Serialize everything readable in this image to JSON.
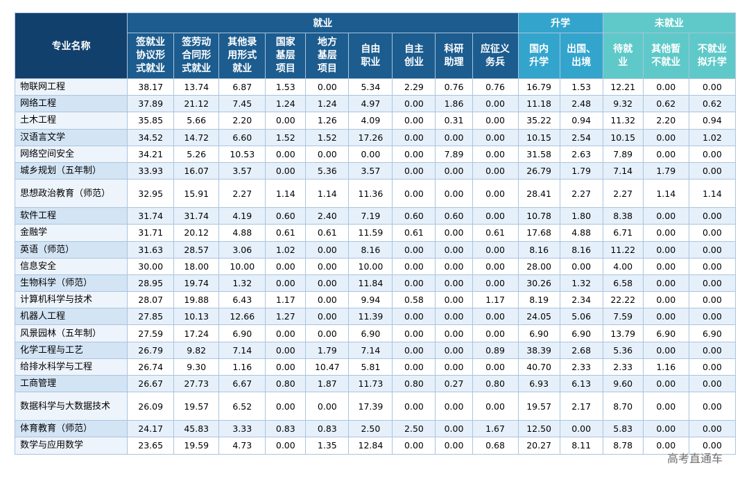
{
  "table": {
    "name_header": "专业名称",
    "groups": [
      {
        "label": "就业",
        "span": 9,
        "cls": "h-emp"
      },
      {
        "label": "升学",
        "span": 2,
        "cls": "h-up"
      },
      {
        "label": "未就业",
        "span": 3,
        "cls": "h-un"
      }
    ],
    "columns": [
      {
        "label": "签就业\n协议形\n式就业",
        "cls": "h-emp"
      },
      {
        "label": "签劳动\n合同形\n式就业",
        "cls": "h-emp"
      },
      {
        "label": "其他录\n用形式\n就业",
        "cls": "h-emp"
      },
      {
        "label": "国家\n基层\n项目",
        "cls": "h-emp"
      },
      {
        "label": "地方\n基层\n项目",
        "cls": "h-emp"
      },
      {
        "label": "自由\n职业",
        "cls": "h-emp"
      },
      {
        "label": "自主\n创业",
        "cls": "h-emp"
      },
      {
        "label": "科研\n助理",
        "cls": "h-emp"
      },
      {
        "label": "应征义\n务兵",
        "cls": "h-emp"
      },
      {
        "label": "国内\n升学",
        "cls": "h-up"
      },
      {
        "label": "出国、\n出境",
        "cls": "h-up"
      },
      {
        "label": "待就\n业",
        "cls": "h-un"
      },
      {
        "label": "其他暂\n不就业",
        "cls": "h-un"
      },
      {
        "label": "不就业\n拟升学",
        "cls": "h-un"
      }
    ],
    "rows": [
      {
        "name": "物联网工程",
        "values": [
          "38.17",
          "13.74",
          "6.87",
          "1.53",
          "0.00",
          "5.34",
          "2.29",
          "0.76",
          "0.76",
          "16.79",
          "1.53",
          "12.21",
          "0.00",
          "0.00"
        ]
      },
      {
        "name": "网络工程",
        "values": [
          "37.89",
          "21.12",
          "7.45",
          "1.24",
          "1.24",
          "4.97",
          "0.00",
          "1.86",
          "0.00",
          "11.18",
          "2.48",
          "9.32",
          "0.62",
          "0.62"
        ]
      },
      {
        "name": "土木工程",
        "values": [
          "35.85",
          "5.66",
          "2.20",
          "0.00",
          "1.26",
          "4.09",
          "0.00",
          "0.31",
          "0.00",
          "35.22",
          "0.94",
          "11.32",
          "2.20",
          "0.94"
        ]
      },
      {
        "name": "汉语言文学",
        "values": [
          "34.52",
          "14.72",
          "6.60",
          "1.52",
          "1.52",
          "17.26",
          "0.00",
          "0.00",
          "0.00",
          "10.15",
          "2.54",
          "10.15",
          "0.00",
          "1.02"
        ]
      },
      {
        "name": "网络空间安全",
        "values": [
          "34.21",
          "5.26",
          "10.53",
          "0.00",
          "0.00",
          "0.00",
          "0.00",
          "7.89",
          "0.00",
          "31.58",
          "2.63",
          "7.89",
          "0.00",
          "0.00"
        ]
      },
      {
        "name": "城乡规划（五年制）",
        "values": [
          "33.93",
          "16.07",
          "3.57",
          "0.00",
          "5.36",
          "3.57",
          "0.00",
          "0.00",
          "0.00",
          "26.79",
          "1.79",
          "7.14",
          "1.79",
          "0.00"
        ]
      },
      {
        "name": "思想政治教育（师范）",
        "values": [
          "32.95",
          "15.91",
          "2.27",
          "1.14",
          "1.14",
          "11.36",
          "0.00",
          "0.00",
          "0.00",
          "28.41",
          "2.27",
          "2.27",
          "1.14",
          "1.14"
        ]
      },
      {
        "name": "软件工程",
        "values": [
          "31.74",
          "31.74",
          "4.19",
          "0.60",
          "2.40",
          "7.19",
          "0.60",
          "0.60",
          "0.00",
          "10.78",
          "1.80",
          "8.38",
          "0.00",
          "0.00"
        ]
      },
      {
        "name": "金融学",
        "values": [
          "31.71",
          "20.12",
          "4.88",
          "0.61",
          "0.61",
          "11.59",
          "0.61",
          "0.00",
          "0.61",
          "17.68",
          "4.88",
          "6.71",
          "0.00",
          "0.00"
        ]
      },
      {
        "name": "英语（师范）",
        "values": [
          "31.63",
          "28.57",
          "3.06",
          "1.02",
          "0.00",
          "8.16",
          "0.00",
          "0.00",
          "0.00",
          "8.16",
          "8.16",
          "11.22",
          "0.00",
          "0.00"
        ]
      },
      {
        "name": "信息安全",
        "values": [
          "30.00",
          "18.00",
          "10.00",
          "0.00",
          "0.00",
          "10.00",
          "0.00",
          "0.00",
          "0.00",
          "28.00",
          "0.00",
          "4.00",
          "0.00",
          "0.00"
        ]
      },
      {
        "name": "生物科学（师范）",
        "values": [
          "28.95",
          "19.74",
          "1.32",
          "0.00",
          "0.00",
          "11.84",
          "0.00",
          "0.00",
          "0.00",
          "30.26",
          "1.32",
          "6.58",
          "0.00",
          "0.00"
        ]
      },
      {
        "name": "计算机科学与技术",
        "values": [
          "28.07",
          "19.88",
          "6.43",
          "1.17",
          "0.00",
          "9.94",
          "0.58",
          "0.00",
          "1.17",
          "8.19",
          "2.34",
          "22.22",
          "0.00",
          "0.00"
        ]
      },
      {
        "name": "机器人工程",
        "values": [
          "27.85",
          "10.13",
          "12.66",
          "1.27",
          "0.00",
          "11.39",
          "0.00",
          "0.00",
          "0.00",
          "24.05",
          "5.06",
          "7.59",
          "0.00",
          "0.00"
        ]
      },
      {
        "name": "风景园林（五年制）",
        "values": [
          "27.59",
          "17.24",
          "6.90",
          "0.00",
          "0.00",
          "6.90",
          "0.00",
          "0.00",
          "0.00",
          "6.90",
          "6.90",
          "13.79",
          "6.90",
          "6.90"
        ]
      },
      {
        "name": "化学工程与工艺",
        "values": [
          "26.79",
          "9.82",
          "7.14",
          "0.00",
          "1.79",
          "7.14",
          "0.00",
          "0.00",
          "0.89",
          "38.39",
          "2.68",
          "5.36",
          "0.00",
          "0.00"
        ]
      },
      {
        "name": "给排水科学与工程",
        "values": [
          "26.74",
          "9.30",
          "1.16",
          "0.00",
          "10.47",
          "5.81",
          "0.00",
          "0.00",
          "0.00",
          "40.70",
          "2.33",
          "2.33",
          "1.16",
          "0.00"
        ]
      },
      {
        "name": "工商管理",
        "values": [
          "26.67",
          "27.73",
          "6.67",
          "0.80",
          "1.87",
          "11.73",
          "0.80",
          "0.27",
          "0.80",
          "6.93",
          "6.13",
          "9.60",
          "0.00",
          "0.00"
        ]
      },
      {
        "name": "数据科学与大数据技术",
        "values": [
          "26.09",
          "19.57",
          "6.52",
          "0.00",
          "0.00",
          "17.39",
          "0.00",
          "0.00",
          "0.00",
          "19.57",
          "2.17",
          "8.70",
          "0.00",
          "0.00"
        ]
      },
      {
        "name": "体育教育（师范）",
        "values": [
          "24.17",
          "45.83",
          "3.33",
          "0.83",
          "0.83",
          "2.50",
          "2.50",
          "0.00",
          "1.67",
          "12.50",
          "0.00",
          "5.83",
          "0.00",
          "0.00"
        ]
      },
      {
        "name": "数学与应用数学",
        "values": [
          "23.65",
          "19.59",
          "4.73",
          "0.00",
          "1.35",
          "12.84",
          "0.00",
          "0.00",
          "0.68",
          "20.27",
          "8.11",
          "8.78",
          "0.00",
          "0.00"
        ]
      }
    ]
  },
  "watermark": "高考直通车"
}
